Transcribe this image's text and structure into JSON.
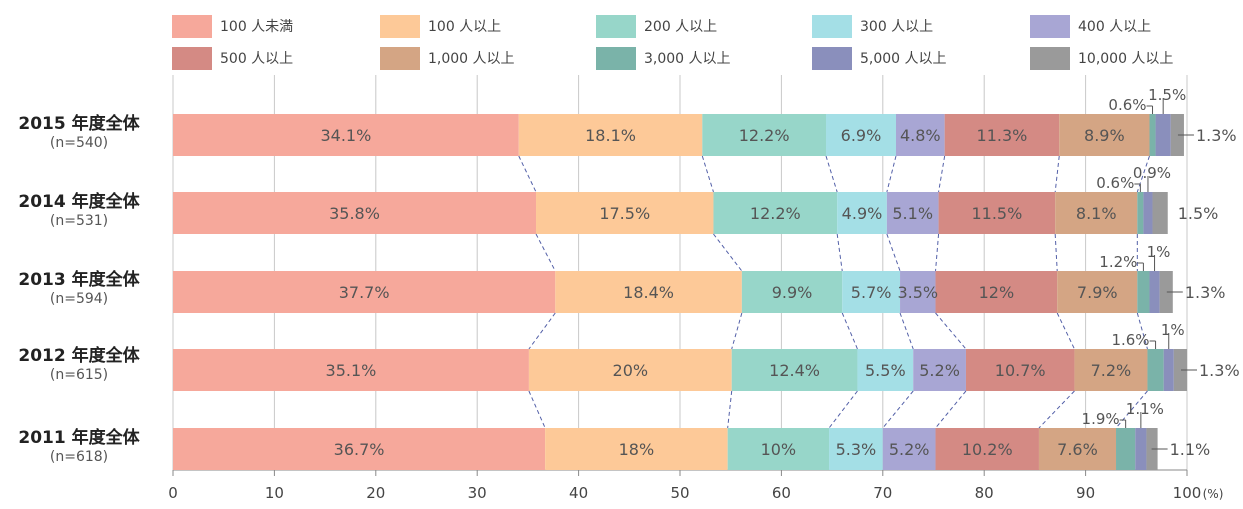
{
  "legend": {
    "items": [
      {
        "label": "100 人未満",
        "color": "#f6a89b"
      },
      {
        "label": "100 人以上",
        "color": "#fdc998"
      },
      {
        "label": "200 人以上",
        "color": "#97d6c9"
      },
      {
        "label": "300 人以上",
        "color": "#a4dfe6"
      },
      {
        "label": "400 人以上",
        "color": "#a8a6d4"
      },
      {
        "label": "500 人以上",
        "color": "#d48a84"
      },
      {
        "label": "1,000 人以上",
        "color": "#d4a584"
      },
      {
        "label": "3,000 人以上",
        "color": "#7ab3a9"
      },
      {
        "label": "5,000 人以上",
        "color": "#8a8fbc"
      },
      {
        "label": "10,000 人以上",
        "color": "#9a9a9a"
      }
    ]
  },
  "chart_data": {
    "type": "bar",
    "orientation": "horizontal",
    "stacked": true,
    "xlim": [
      0,
      100
    ],
    "x_ticks": [
      "0",
      "10",
      "20",
      "30",
      "40",
      "50",
      "60",
      "70",
      "80",
      "90",
      "100"
    ],
    "x_unit": "(%)",
    "grid": true,
    "legend_position": "top",
    "categories": [
      {
        "label": "2015 年度全体",
        "n": "(n=540)"
      },
      {
        "label": "2014 年度全体",
        "n": "(n=531)"
      },
      {
        "label": "2013 年度全体",
        "n": "(n=594)"
      },
      {
        "label": "2012 年度全体",
        "n": "(n=615)"
      },
      {
        "label": "2011 年度全体",
        "n": "(n=618)"
      }
    ],
    "series": [
      {
        "name": "100 人未満",
        "values": [
          34.1,
          35.8,
          37.7,
          35.1,
          36.7
        ],
        "labels": [
          "34.1%",
          "35.8%",
          "37.7%",
          "35.1%",
          "36.7%"
        ]
      },
      {
        "name": "100 人以上",
        "values": [
          18.1,
          17.5,
          18.4,
          20,
          18
        ],
        "labels": [
          "18.1%",
          "17.5%",
          "18.4%",
          "20%",
          "18%"
        ]
      },
      {
        "name": "200 人以上",
        "values": [
          12.2,
          12.2,
          9.9,
          12.4,
          10
        ],
        "labels": [
          "12.2%",
          "12.2%",
          "9.9%",
          "12.4%",
          "10%"
        ]
      },
      {
        "name": "300 人以上",
        "values": [
          6.9,
          4.9,
          5.7,
          5.5,
          5.3
        ],
        "labels": [
          "6.9%",
          "4.9%",
          "5.7%",
          "5.5%",
          "5.3%"
        ]
      },
      {
        "name": "400 人以上",
        "values": [
          4.8,
          5.1,
          3.5,
          5.2,
          5.2
        ],
        "labels": [
          "4.8%",
          "5.1%",
          "3.5%",
          "5.2%",
          "5.2%"
        ]
      },
      {
        "name": "500 人以上",
        "values": [
          11.3,
          11.5,
          12,
          10.7,
          10.2
        ],
        "labels": [
          "11.3%",
          "11.5%",
          "12%",
          "10.7%",
          "10.2%"
        ]
      },
      {
        "name": "1,000 人以上",
        "values": [
          8.9,
          8.1,
          7.9,
          7.2,
          7.6
        ],
        "labels": [
          "8.9%",
          "8.1%",
          "7.9%",
          "7.2%",
          "7.6%"
        ]
      },
      {
        "name": "3,000 人以上",
        "values": [
          0.6,
          0.6,
          1.2,
          1.6,
          1.9
        ],
        "labels": [
          "0.6%",
          "0.6%",
          "1.2%",
          "1.6%",
          "1.9%"
        ]
      },
      {
        "name": "5,000 人以上",
        "values": [
          1.5,
          0.9,
          1,
          1,
          1.1
        ],
        "labels": [
          "1.5%",
          "0.9%",
          "1%",
          "1%",
          "1.1%"
        ]
      },
      {
        "name": "10,000 人以上",
        "values": [
          1.3,
          1.5,
          1.3,
          1.3,
          1.1
        ],
        "labels": [
          "1.3%",
          "1.5%",
          "1.3%",
          "1.3%",
          "1.1%"
        ]
      }
    ]
  }
}
